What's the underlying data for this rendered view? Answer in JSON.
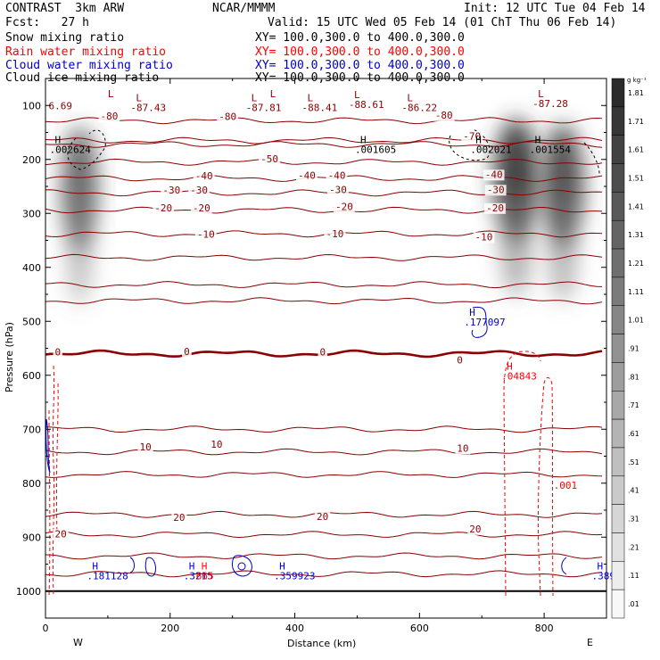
{
  "header": {
    "title": "CONTRAST  3km ARW",
    "center": "NCAR/MMMM",
    "init": "Init: 12 UTC Tue 04 Feb 14",
    "fcst": "Fcst:   27 h",
    "valid": "Valid: 15 UTC Wed 05 Feb 14 (01 ChT Thu 06 Feb 14)",
    "fields": [
      {
        "name": "Snow mixing ratio",
        "xy": "XY= 100.0,300.0 to 400.0,300.0",
        "color": "#000000"
      },
      {
        "name": "Rain water mixing ratio",
        "xy": "XY= 100.0,300.0 to 400.0,300.0",
        "color": "#ff0000"
      },
      {
        "name": "Cloud water mixing ratio",
        "xy": "XY= 100.0,300.0 to 400.0,300.0",
        "color": "#0000cc"
      },
      {
        "name": "Cloud ice mixing ratio",
        "xy": "XY= 100.0,300.0 to 400.0,300.0",
        "color": "#000000"
      }
    ]
  },
  "chart_data": {
    "type": "heatmap",
    "xlabel": "Distance (km)",
    "ylabel": "Pressure (hPa)",
    "xlim": [
      0,
      900
    ],
    "ylim": [
      1050,
      50
    ],
    "xticks": [
      0,
      200,
      400,
      600,
      800
    ],
    "xtick_labels": [
      "0",
      "200",
      "400",
      "600",
      "800"
    ],
    "yticks": [
      100,
      200,
      300,
      400,
      500,
      600,
      700,
      800,
      900,
      1000
    ],
    "ytick_labels": [
      "100",
      "200",
      "300",
      "400",
      "500",
      "600",
      "700",
      "800",
      "900",
      "1000"
    ],
    "direction_labels": {
      "west": "W",
      "east": "E"
    },
    "colorbar": {
      "unit": "g kg⁻¹",
      "levels": [
        "1.81",
        "1.71",
        "1.61",
        "1.51",
        "1.41",
        "1.31",
        "1.21",
        "1.11",
        "1.01",
        ".91",
        ".81",
        ".71",
        ".61",
        ".51",
        ".41",
        ".31",
        ".21",
        ".11",
        ".01"
      ]
    },
    "snow_maxima": [
      {
        "x": 55,
        "p": 255,
        "q": 0.6
      },
      {
        "x": 755,
        "p": 240,
        "q": 1.0
      },
      {
        "x": 830,
        "p": 250,
        "q": 0.85
      }
    ],
    "temperature_contours": [
      {
        "label": "-80",
        "p": 128
      },
      {
        "label": "-70",
        "p": 165
      },
      {
        "label": "-60",
        "p": 172
      },
      {
        "label": "-50",
        "p": 205
      },
      {
        "label": "-40",
        "p": 235
      },
      {
        "label": "-30",
        "p": 262
      },
      {
        "label": "-20",
        "p": 294
      },
      {
        "label": "-10",
        "p": 338
      },
      {
        "label": "0",
        "p": 382
      },
      {
        "label": "0",
        "p": 432
      },
      {
        "label": "0",
        "p": 462
      },
      {
        "label": "0",
        "p": 560
      },
      {
        "label": "10",
        "p": 700
      },
      {
        "label": "10",
        "p": 742
      },
      {
        "label": "10",
        "p": 784
      },
      {
        "label": "20",
        "p": 858
      },
      {
        "label": "20",
        "p": 895
      },
      {
        "label": "20",
        "p": 935
      },
      {
        "label": "20",
        "p": 968
      }
    ],
    "contour_labels": [
      {
        "t": "-80",
        "x": 88,
        "p": 126
      },
      {
        "t": "-80",
        "x": 278,
        "p": 127
      },
      {
        "t": "-80",
        "x": 625,
        "p": 124
      },
      {
        "t": "-70",
        "x": 670,
        "p": 163
      },
      {
        "t": "-50",
        "x": 345,
        "p": 205
      },
      {
        "t": "-40",
        "x": 240,
        "p": 237
      },
      {
        "t": "-40",
        "x": 405,
        "p": 236
      },
      {
        "t": "-40",
        "x": 453,
        "p": 236
      },
      {
        "t": "-40",
        "x": 705,
        "p": 234
      },
      {
        "t": "-30",
        "x": 188,
        "p": 263
      },
      {
        "t": "-30",
        "x": 232,
        "p": 263
      },
      {
        "t": "-30",
        "x": 455,
        "p": 262
      },
      {
        "t": "-30",
        "x": 708,
        "p": 262
      },
      {
        "t": "-20",
        "x": 175,
        "p": 296
      },
      {
        "t": "-20",
        "x": 236,
        "p": 296
      },
      {
        "t": "-20",
        "x": 465,
        "p": 294
      },
      {
        "t": "-20",
        "x": 707,
        "p": 296
      },
      {
        "t": "-10",
        "x": 243,
        "p": 345
      },
      {
        "t": "-10",
        "x": 450,
        "p": 344
      },
      {
        "t": "-10",
        "x": 689,
        "p": 350
      },
      {
        "t": "0",
        "x": 15,
        "p": 563
      },
      {
        "t": "0",
        "x": 222,
        "p": 562
      },
      {
        "t": "0",
        "x": 440,
        "p": 563
      },
      {
        "t": "0",
        "x": 660,
        "p": 578
      },
      {
        "t": "10",
        "x": 151,
        "p": 739
      },
      {
        "t": "10",
        "x": 265,
        "p": 734
      },
      {
        "t": "10",
        "x": 660,
        "p": 742
      },
      {
        "t": "20",
        "x": 15,
        "p": 900
      },
      {
        "t": "20",
        "x": 205,
        "p": 870
      },
      {
        "t": "20",
        "x": 435,
        "p": 868
      },
      {
        "t": "20",
        "x": 680,
        "p": 891
      }
    ],
    "max_min_markers": [
      {
        "type": "L",
        "x": 100,
        "p": 85,
        "value": "",
        "color": "#8b0000"
      },
      {
        "type": "L",
        "x": 145,
        "p": 92,
        "value": "-87.43",
        "color": "#8b0000"
      },
      {
        "type": "L",
        "x": 330,
        "p": 92,
        "value": "-87.81",
        "color": "#8b0000"
      },
      {
        "type": "L",
        "x": 360,
        "p": 85,
        "value": "",
        "color": "#8b0000"
      },
      {
        "type": "L",
        "x": 420,
        "p": 92,
        "value": "-88.41",
        "color": "#8b0000"
      },
      {
        "type": "L",
        "x": 495,
        "p": 86,
        "value": "-88.61",
        "color": "#8b0000"
      },
      {
        "type": "L",
        "x": 580,
        "p": 92,
        "value": "-86.22",
        "color": "#8b0000"
      },
      {
        "type": "L",
        "x": 790,
        "p": 85,
        "value": "-87.28",
        "color": "#8b0000"
      },
      {
        "type": "H",
        "x": 15,
        "p": 170,
        "value": ".002624",
        "color": "#000000"
      },
      {
        "type": "H",
        "x": 505,
        "p": 170,
        "value": ".001605",
        "color": "#000000"
      },
      {
        "type": "H",
        "x": 690,
        "p": 170,
        "value": ".002021",
        "color": "#000000"
      },
      {
        "type": "H",
        "x": 785,
        "p": 170,
        "value": ".001554",
        "color": "#000000"
      },
      {
        "type": "H",
        "x": 680,
        "p": 490,
        "value": ".177097",
        "color": "#0000cc"
      },
      {
        "type": "H",
        "x": 740,
        "p": 590,
        "value": ".04843",
        "color": "#ff0000"
      },
      {
        "type": "H",
        "x": 75,
        "p": 960,
        "value": ".181128",
        "color": "#0000cc"
      },
      {
        "type": "H",
        "x": 230,
        "p": 960,
        "value": ".3215",
        "color": "#0000cc"
      },
      {
        "type": "H",
        "x": 250,
        "p": 960,
        "value": "665",
        "color": "#ff0000"
      },
      {
        "type": "H",
        "x": 375,
        "p": 960,
        "value": ".359923",
        "color": "#0000cc"
      },
      {
        "type": "H",
        "x": 885,
        "p": 960,
        "value": ".3897",
        "color": "#0000cc"
      }
    ],
    "misc_labels": [
      {
        "t": "6.69",
        "x": 5,
        "p": 107,
        "color": "#8b0000"
      },
      {
        "t": ".001",
        "x": 815,
        "p": 810,
        "color": "#ff0000"
      }
    ]
  }
}
